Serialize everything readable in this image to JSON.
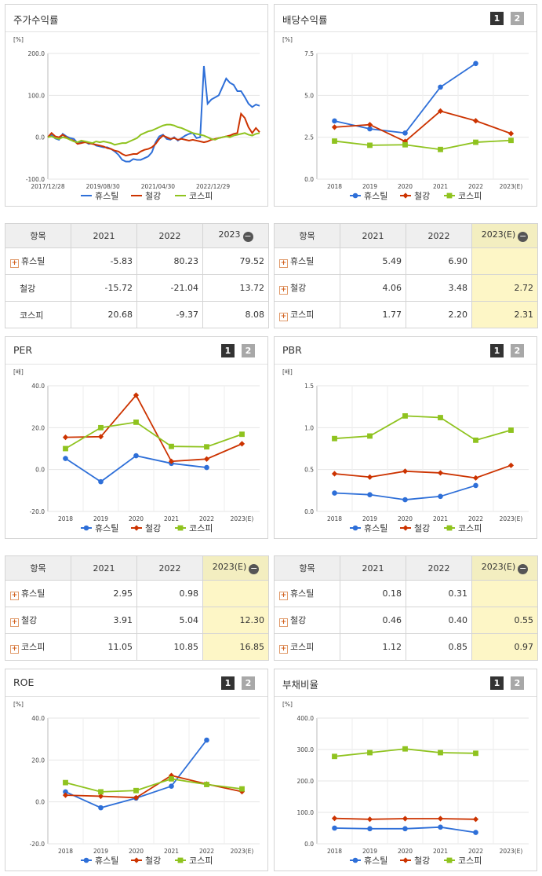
{
  "colors": {
    "s1": "#2e6fd8",
    "s2": "#cc3300",
    "s3": "#8fc31f"
  },
  "panels": [
    {
      "id": "stock-return",
      "title": "주가수익률",
      "tabs": []
    },
    {
      "id": "dividend",
      "title": "배당수익률",
      "tabs": [
        "1",
        "2"
      ]
    },
    {
      "id": "per",
      "title": "PER",
      "tabs": [
        "1",
        "2"
      ]
    },
    {
      "id": "pbr",
      "title": "PBR",
      "tabs": [
        "1",
        "2"
      ]
    },
    {
      "id": "roe",
      "title": "ROE",
      "tabs": [
        "1",
        "2"
      ]
    },
    {
      "id": "debt",
      "title": "부채비율",
      "tabs": [
        "1",
        "2"
      ]
    }
  ],
  "chart_data": [
    {
      "id": "stock-return",
      "type": "line",
      "title": "주가수익률",
      "ylabel": "[%]",
      "ylim": [
        -100,
        200
      ],
      "yticks": [
        "200.0",
        "100.0",
        "0.0",
        "-100.0"
      ],
      "ytick_values": [
        200,
        100,
        0,
        -100
      ],
      "xticks": [
        "2017/12/28",
        "2019/08/30",
        "2021/04/30",
        "2022/12/29"
      ],
      "xtick_pos": [
        0,
        0.26,
        0.52,
        0.78
      ],
      "legend": [
        "휴스틸",
        "철강",
        "코스피"
      ],
      "series": [
        {
          "name": "휴스틸",
          "values": [
            0,
            5,
            -3,
            -6,
            8,
            2,
            -2,
            -4,
            -14,
            -12,
            -10,
            -16,
            -14,
            -20,
            -22,
            -24,
            -24,
            -28,
            -34,
            -42,
            -54,
            -58,
            -58,
            -52,
            -54,
            -54,
            -50,
            -46,
            -36,
            -12,
            2,
            6,
            -4,
            -6,
            0,
            -8,
            -2,
            4,
            8,
            10,
            -2,
            0,
            170,
            80,
            90,
            95,
            100,
            120,
            140,
            130,
            125,
            110,
            110,
            96,
            80,
            72,
            78,
            75
          ]
        },
        {
          "name": "철강",
          "values": [
            0,
            10,
            2,
            0,
            6,
            0,
            -6,
            -8,
            -16,
            -14,
            -12,
            -14,
            -16,
            -18,
            -20,
            -22,
            -26,
            -28,
            -32,
            -34,
            -40,
            -44,
            -42,
            -40,
            -40,
            -34,
            -30,
            -28,
            -24,
            -16,
            -4,
            4,
            0,
            -4,
            -2,
            -6,
            -4,
            -6,
            -8,
            -6,
            -8,
            -10,
            -12,
            -10,
            -6,
            -4,
            -2,
            0,
            2,
            4,
            8,
            10,
            56,
            46,
            24,
            10,
            22,
            12
          ]
        },
        {
          "name": "코스피",
          "values": [
            0,
            2,
            -2,
            -4,
            0,
            -2,
            -6,
            -10,
            -12,
            -8,
            -10,
            -12,
            -14,
            -10,
            -12,
            -10,
            -12,
            -14,
            -18,
            -16,
            -14,
            -14,
            -10,
            -6,
            -2,
            6,
            10,
            14,
            16,
            20,
            24,
            28,
            30,
            30,
            28,
            24,
            22,
            18,
            14,
            10,
            8,
            6,
            4,
            0,
            -4,
            -6,
            -2,
            0,
            2,
            0,
            4,
            6,
            8,
            10,
            6,
            4,
            8,
            10
          ]
        }
      ]
    },
    {
      "id": "dividend",
      "type": "line",
      "title": "배당수익률",
      "ylabel": "[%]",
      "ylim": [
        0,
        7.5
      ],
      "yticks": [
        "7.5",
        "5.0",
        "2.5",
        "0.0"
      ],
      "ytick_values": [
        7.5,
        5.0,
        2.5,
        0
      ],
      "categories": [
        "2018",
        "2019",
        "2020",
        "2021",
        "2022",
        "2023(E)"
      ],
      "legend": [
        "휴스틸",
        "철강",
        "코스피"
      ],
      "series": [
        {
          "name": "휴스틸",
          "values": [
            3.47,
            3.0,
            2.75,
            5.49,
            6.9,
            null
          ]
        },
        {
          "name": "철강",
          "values": [
            3.1,
            3.25,
            2.25,
            4.06,
            3.48,
            2.72
          ]
        },
        {
          "name": "코스피",
          "values": [
            2.27,
            2.02,
            2.05,
            1.77,
            2.2,
            2.31
          ]
        }
      ]
    },
    {
      "id": "per",
      "type": "line",
      "title": "PER",
      "ylabel": "[배]",
      "ylim": [
        -20,
        40
      ],
      "yticks": [
        "40.0",
        "20.0",
        "0.0",
        "-20.0"
      ],
      "ytick_values": [
        40,
        20,
        0,
        -20
      ],
      "categories": [
        "2018",
        "2019",
        "2020",
        "2021",
        "2022",
        "2023(E)"
      ],
      "legend": [
        "휴스틸",
        "철강",
        "코스피"
      ],
      "series": [
        {
          "name": "휴스틸",
          "values": [
            5.3,
            -5.8,
            6.6,
            2.95,
            0.98,
            null
          ]
        },
        {
          "name": "철강",
          "values": [
            15.4,
            15.7,
            35.5,
            3.91,
            5.04,
            12.3
          ]
        },
        {
          "name": "코스피",
          "values": [
            10.0,
            20.0,
            22.6,
            11.05,
            10.85,
            16.85
          ]
        }
      ]
    },
    {
      "id": "pbr",
      "type": "line",
      "title": "PBR",
      "ylabel": "[배]",
      "ylim": [
        0,
        1.5
      ],
      "yticks": [
        "1.5",
        "1.0",
        "0.5",
        "0.0"
      ],
      "ytick_values": [
        1.5,
        1.0,
        0.5,
        0
      ],
      "categories": [
        "2018",
        "2019",
        "2020",
        "2021",
        "2022",
        "2023(E)"
      ],
      "legend": [
        "휴스틸",
        "철강",
        "코스피"
      ],
      "series": [
        {
          "name": "휴스틸",
          "values": [
            0.22,
            0.2,
            0.14,
            0.18,
            0.31,
            null
          ]
        },
        {
          "name": "철강",
          "values": [
            0.45,
            0.41,
            0.48,
            0.46,
            0.4,
            0.55
          ]
        },
        {
          "name": "코스피",
          "values": [
            0.87,
            0.9,
            1.14,
            1.12,
            0.85,
            0.97
          ]
        }
      ]
    },
    {
      "id": "roe",
      "type": "line",
      "title": "ROE",
      "ylabel": "[%]",
      "ylim": [
        -20,
        40
      ],
      "yticks": [
        "40.0",
        "20.0",
        "0.0",
        "-20.0"
      ],
      "ytick_values": [
        40,
        20,
        0,
        -20
      ],
      "categories": [
        "2018",
        "2019",
        "2020",
        "2021",
        "2022",
        "2023(E)"
      ],
      "legend": [
        "휴스틸",
        "철강",
        "코스피"
      ],
      "series": [
        {
          "name": "휴스틸",
          "values": [
            4.8,
            -2.8,
            1.8,
            7.5,
            29.5,
            null
          ]
        },
        {
          "name": "철강",
          "values": [
            3.2,
            2.7,
            2.0,
            12.6,
            8.5,
            4.9
          ]
        },
        {
          "name": "코스피",
          "values": [
            9.2,
            4.8,
            5.4,
            11.0,
            8.3,
            6.2
          ]
        }
      ]
    },
    {
      "id": "debt",
      "type": "line",
      "title": "부채비율",
      "ylabel": "[%]",
      "ylim": [
        0,
        400
      ],
      "yticks": [
        "400.0",
        "300.0",
        "200.0",
        "100.0",
        "0.0"
      ],
      "ytick_values": [
        400,
        300,
        200,
        100,
        0
      ],
      "categories": [
        "2018",
        "2019",
        "2020",
        "2021",
        "2022",
        "2023(E)"
      ],
      "legend": [
        "휴스틸",
        "철강",
        "코스피"
      ],
      "series": [
        {
          "name": "휴스틸",
          "values": [
            50,
            48,
            48,
            53,
            36,
            null
          ]
        },
        {
          "name": "철강",
          "values": [
            81,
            78,
            80,
            80,
            78,
            null
          ]
        },
        {
          "name": "코스피",
          "values": [
            278,
            290,
            302,
            290,
            288,
            null
          ]
        }
      ]
    }
  ],
  "tables": {
    "stock_return": {
      "headers": [
        "항목",
        "2021",
        "2022",
        "2023"
      ],
      "rows": [
        {
          "name": "휴스틸",
          "vals": [
            "-5.83",
            "80.23",
            "79.52"
          ],
          "plus": true
        },
        {
          "name": "철강",
          "vals": [
            "-15.72",
            "-21.04",
            "13.72"
          ],
          "plus": false
        },
        {
          "name": "코스피",
          "vals": [
            "20.68",
            "-9.37",
            "8.08"
          ],
          "plus": false
        }
      ]
    },
    "dividend": {
      "headers": [
        "항목",
        "2021",
        "2022",
        "2023(E)"
      ],
      "rows": [
        {
          "name": "휴스틸",
          "vals": [
            "5.49",
            "6.90",
            ""
          ],
          "plus": true
        },
        {
          "name": "철강",
          "vals": [
            "4.06",
            "3.48",
            "2.72"
          ],
          "plus": true
        },
        {
          "name": "코스피",
          "vals": [
            "1.77",
            "2.20",
            "2.31"
          ],
          "plus": true
        }
      ]
    },
    "per": {
      "headers": [
        "항목",
        "2021",
        "2022",
        "2023(E)"
      ],
      "rows": [
        {
          "name": "휴스틸",
          "vals": [
            "2.95",
            "0.98",
            ""
          ],
          "plus": true
        },
        {
          "name": "철강",
          "vals": [
            "3.91",
            "5.04",
            "12.30"
          ],
          "plus": true
        },
        {
          "name": "코스피",
          "vals": [
            "11.05",
            "10.85",
            "16.85"
          ],
          "plus": true
        }
      ]
    },
    "pbr": {
      "headers": [
        "항목",
        "2021",
        "2022",
        "2023(E)"
      ],
      "rows": [
        {
          "name": "휴스틸",
          "vals": [
            "0.18",
            "0.31",
            ""
          ],
          "plus": true
        },
        {
          "name": "철강",
          "vals": [
            "0.46",
            "0.40",
            "0.55"
          ],
          "plus": true
        },
        {
          "name": "코스피",
          "vals": [
            "1.12",
            "0.85",
            "0.97"
          ],
          "plus": true
        }
      ]
    }
  }
}
